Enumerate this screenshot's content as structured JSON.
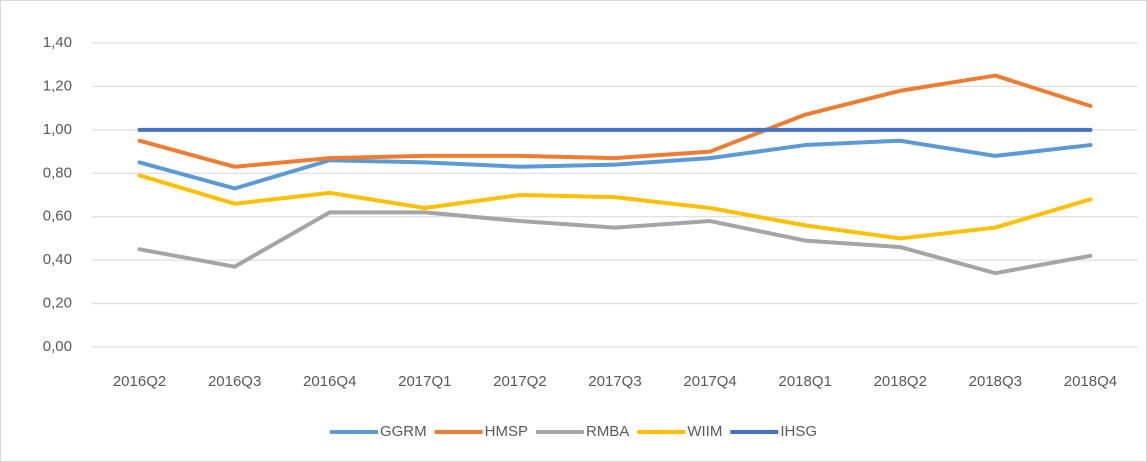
{
  "chart_data": {
    "type": "line",
    "categories": [
      "2016Q2",
      "2016Q3",
      "2016Q4",
      "2017Q1",
      "2017Q2",
      "2017Q3",
      "2017Q4",
      "2018Q1",
      "2018Q2",
      "2018Q3",
      "2018Q4"
    ],
    "series": [
      {
        "name": "GGRM",
        "color": "#5b9bd5",
        "values": [
          0.85,
          0.73,
          0.86,
          0.85,
          0.83,
          0.84,
          0.87,
          0.93,
          0.95,
          0.88,
          0.93
        ]
      },
      {
        "name": "HMSP",
        "color": "#ed7d31",
        "values": [
          0.95,
          0.83,
          0.87,
          0.88,
          0.88,
          0.87,
          0.9,
          1.07,
          1.18,
          1.25,
          1.11
        ]
      },
      {
        "name": "RMBA",
        "color": "#a5a5a5",
        "values": [
          0.45,
          0.37,
          0.62,
          0.62,
          0.58,
          0.55,
          0.58,
          0.49,
          0.46,
          0.34,
          0.42
        ]
      },
      {
        "name": "WIIM",
        "color": "#ffc000",
        "values": [
          0.79,
          0.66,
          0.71,
          0.64,
          0.7,
          0.69,
          0.64,
          0.56,
          0.5,
          0.55,
          0.68
        ]
      },
      {
        "name": "IHSG",
        "color": "#4472c4",
        "values": [
          1,
          1,
          1,
          1,
          1,
          1,
          1,
          1,
          1,
          1,
          1
        ]
      }
    ],
    "ylim": [
      0,
      1.4
    ],
    "yticks": [
      {
        "value": 0,
        "label": "0,00"
      },
      {
        "value": 0.2,
        "label": "0,20"
      },
      {
        "value": 0.4,
        "label": "0,40"
      },
      {
        "value": 0.6,
        "label": "0,60"
      },
      {
        "value": 0.8,
        "label": "0,80"
      },
      {
        "value": 1,
        "label": "1,00"
      },
      {
        "value": 1.2,
        "label": "1,20"
      },
      {
        "value": 1.4,
        "label": "1,40"
      }
    ],
    "grid": true,
    "legend": "bottom"
  }
}
